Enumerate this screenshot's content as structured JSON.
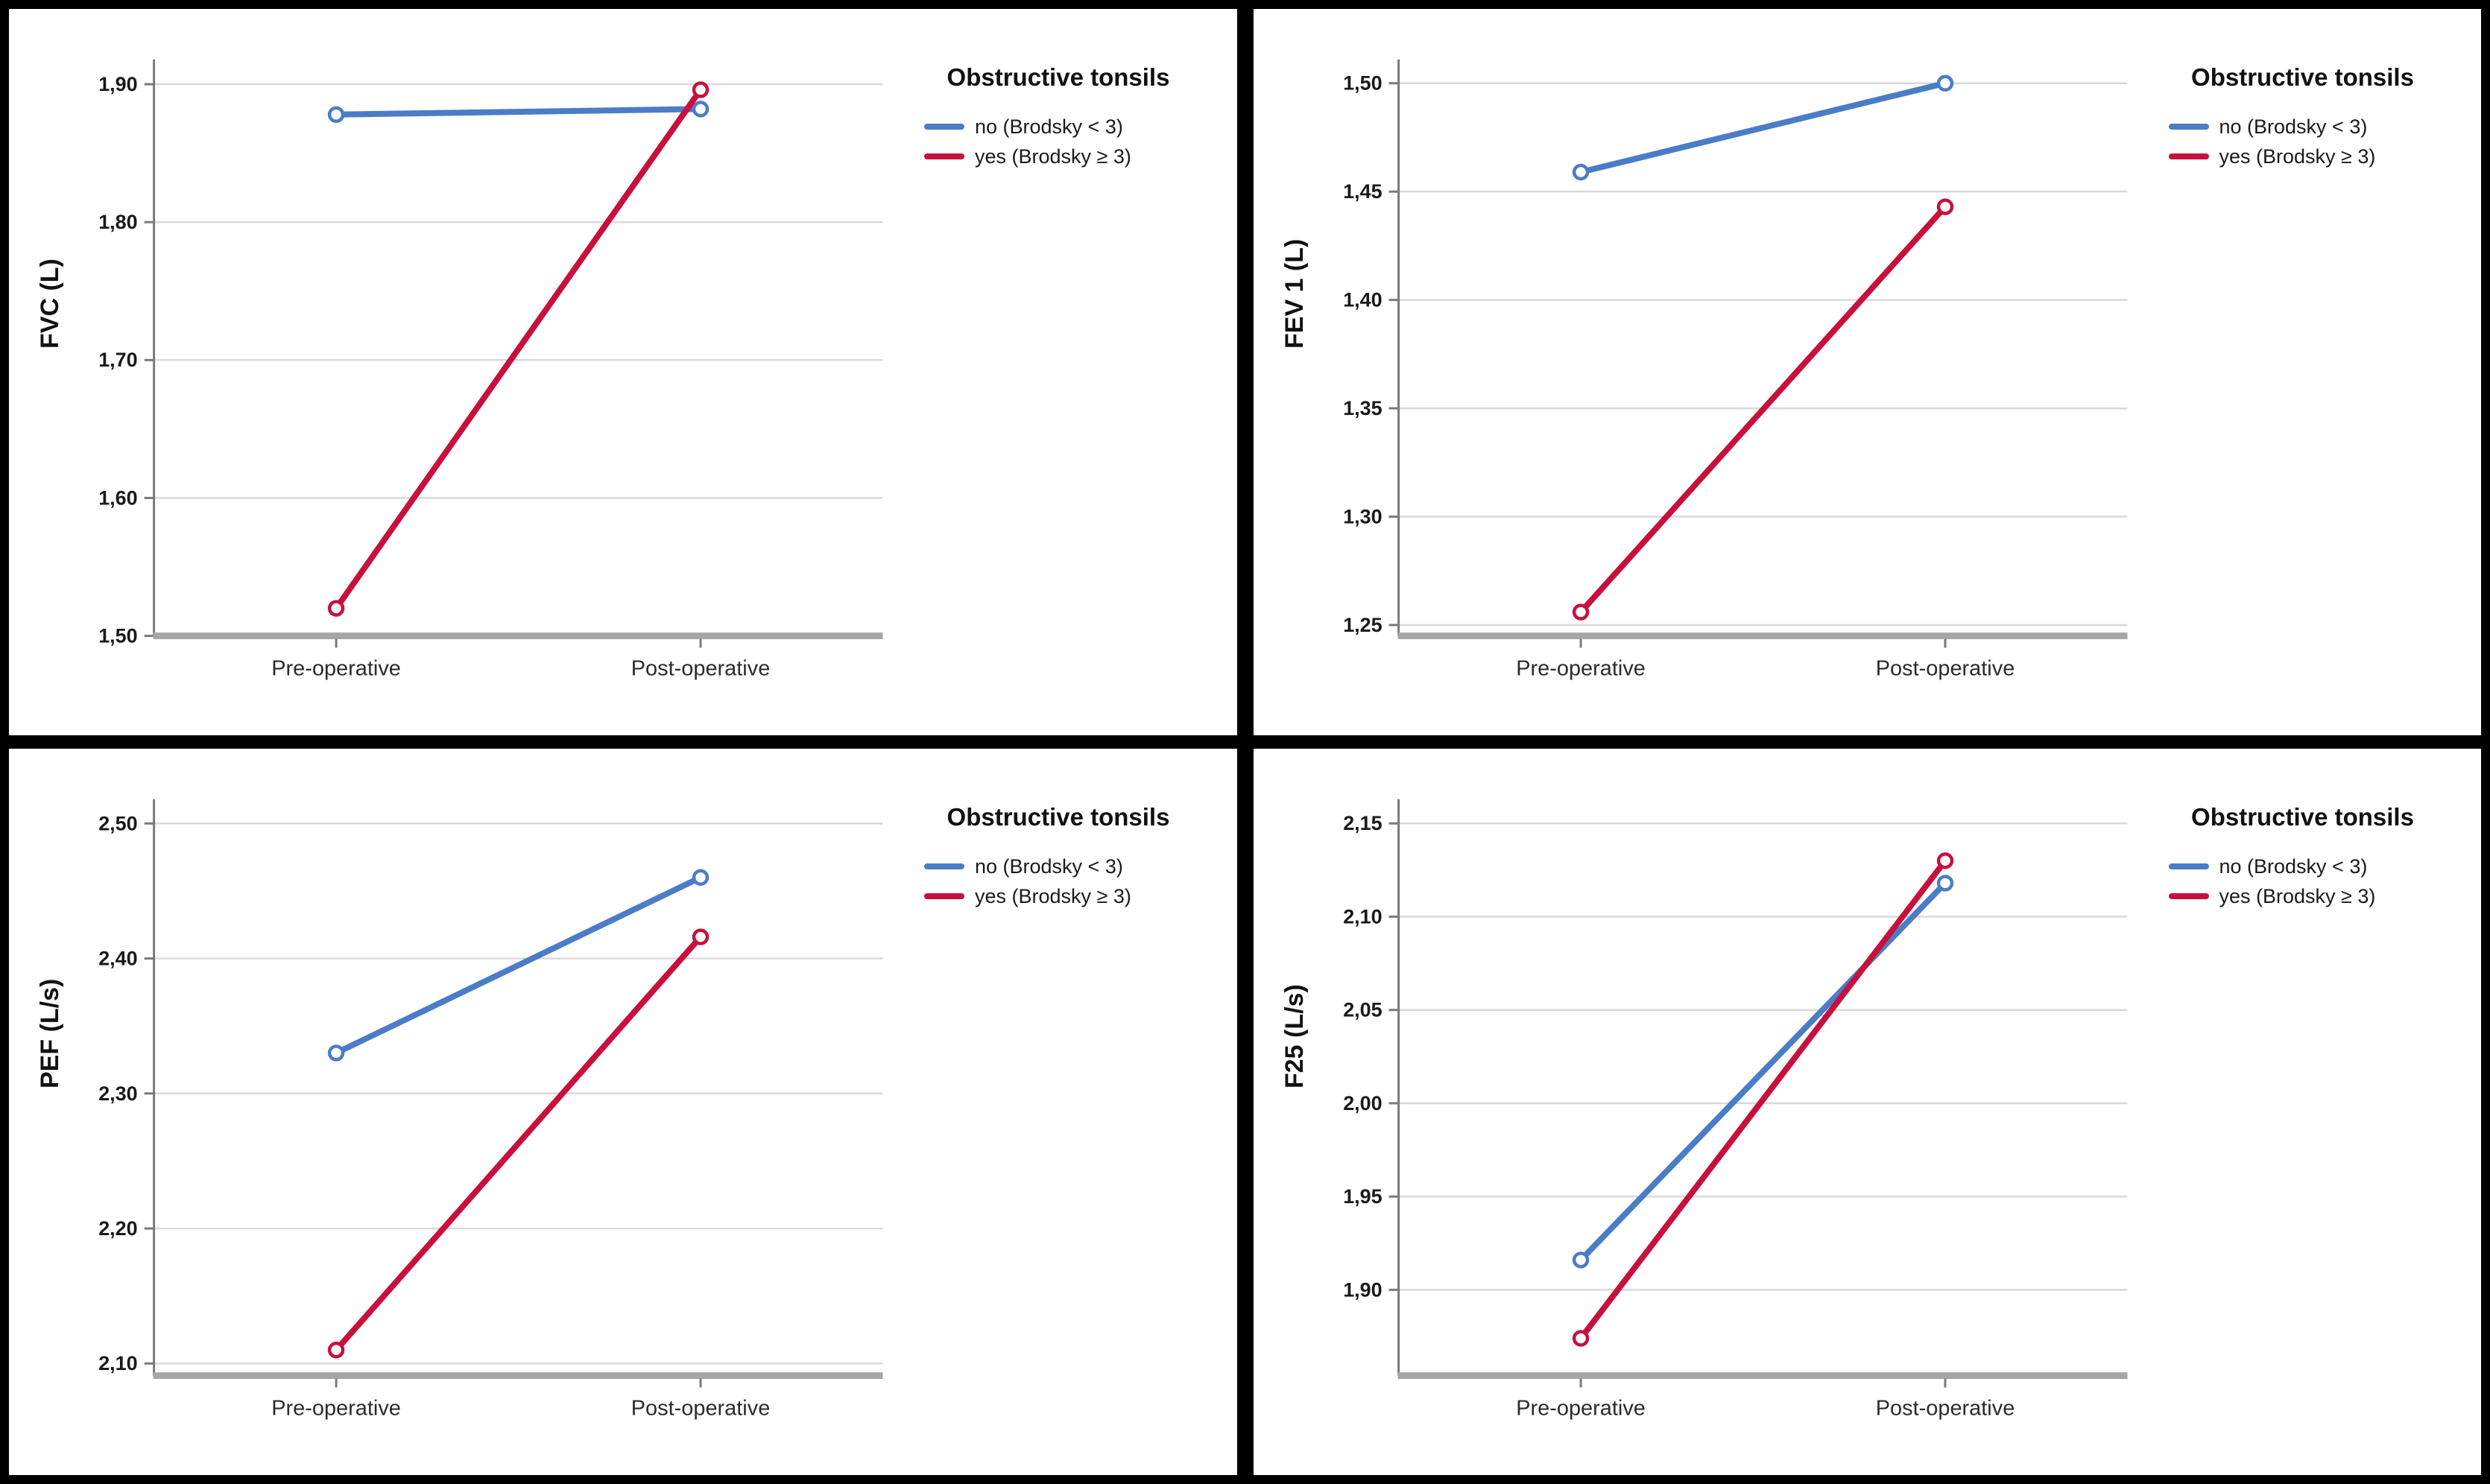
{
  "figure": {
    "description": "2x2 grid of SPSS-style profile line charts of spirometry values pre- vs post-operative by obstructive tonsils group",
    "background": "#000000",
    "panel_background": "#ffffff"
  },
  "colors": {
    "series_no": "#4A7CC8",
    "series_yes": "#C8103C",
    "gridline": "#D9D9D9",
    "y_axis": "#7A7A7A",
    "x_axis": "#A6A6A6",
    "tick_text": "#1a1a1a",
    "category_text": "#2b2b2b"
  },
  "legend": {
    "title": "Obstructive tonsils",
    "items": [
      {
        "label": "no (Brodsky < 3)",
        "color": "#4A7CC8"
      },
      {
        "label": "yes (Brodsky ≥ 3)",
        "color": "#C8103C"
      }
    ],
    "position": "right"
  },
  "chart_data": [
    {
      "type": "line",
      "ylabel": "FVC (L)",
      "categories": [
        "Pre-operative",
        "Post-operative"
      ],
      "series": [
        {
          "name": "no (Brodsky < 3)",
          "color": "#4A7CC8",
          "values": [
            1.878,
            1.882
          ]
        },
        {
          "name": "yes (Brodsky ≥ 3)",
          "color": "#C8103C",
          "values": [
            1.52,
            1.896
          ]
        }
      ],
      "yticks": [
        1.9,
        1.8,
        1.7,
        1.6,
        1.5
      ],
      "ytick_labels": [
        "1,90",
        "1,80",
        "1,70",
        "1,60",
        "1,50"
      ],
      "ylim": [
        1.5,
        1.918
      ],
      "grid": true,
      "legend_title": "Obstructive tonsils",
      "legend_position": "right"
    },
    {
      "type": "line",
      "ylabel": "FEV 1 (L)",
      "categories": [
        "Pre-operative",
        "Post-operative"
      ],
      "series": [
        {
          "name": "no (Brodsky < 3)",
          "color": "#4A7CC8",
          "values": [
            1.459,
            1.5
          ]
        },
        {
          "name": "yes (Brodsky ≥ 3)",
          "color": "#C8103C",
          "values": [
            1.256,
            1.443
          ]
        }
      ],
      "yticks": [
        1.5,
        1.45,
        1.4,
        1.35,
        1.3,
        1.25
      ],
      "ytick_labels": [
        "1,50",
        "1,45",
        "1,40",
        "1,35",
        "1,30",
        "1,25"
      ],
      "ylim": [
        1.245,
        1.511
      ],
      "grid": true,
      "legend_title": "Obstructive tonsils",
      "legend_position": "right"
    },
    {
      "type": "line",
      "ylabel": "PEF (L/s)",
      "categories": [
        "Pre-operative",
        "Post-operative"
      ],
      "series": [
        {
          "name": "no (Brodsky < 3)",
          "color": "#4A7CC8",
          "values": [
            2.33,
            2.46
          ]
        },
        {
          "name": "yes (Brodsky ≥ 3)",
          "color": "#C8103C",
          "values": [
            2.11,
            2.416
          ]
        }
      ],
      "yticks": [
        2.5,
        2.4,
        2.3,
        2.2,
        2.1
      ],
      "ytick_labels": [
        "2,50",
        "2,40",
        "2,30",
        "2,20",
        "2,10"
      ],
      "ylim": [
        2.091,
        2.518
      ],
      "grid": true,
      "legend_title": "Obstructive tonsils",
      "legend_position": "right"
    },
    {
      "type": "line",
      "ylabel": "F25 (L/s)",
      "categories": [
        "Pre-operative",
        "Post-operative"
      ],
      "series": [
        {
          "name": "no (Brodsky < 3)",
          "color": "#4A7CC8",
          "values": [
            1.916,
            2.118
          ]
        },
        {
          "name": "yes (Brodsky ≥ 3)",
          "color": "#C8103C",
          "values": [
            1.874,
            2.13
          ]
        }
      ],
      "yticks": [
        2.15,
        2.1,
        2.05,
        2.0,
        1.95,
        1.9
      ],
      "ytick_labels": [
        "2,15",
        "2,10",
        "2,05",
        "2,00",
        "1,95",
        "1,90"
      ],
      "ylim": [
        1.854,
        2.163
      ],
      "grid": true,
      "legend_title": "Obstructive tonsils",
      "legend_position": "right"
    }
  ]
}
